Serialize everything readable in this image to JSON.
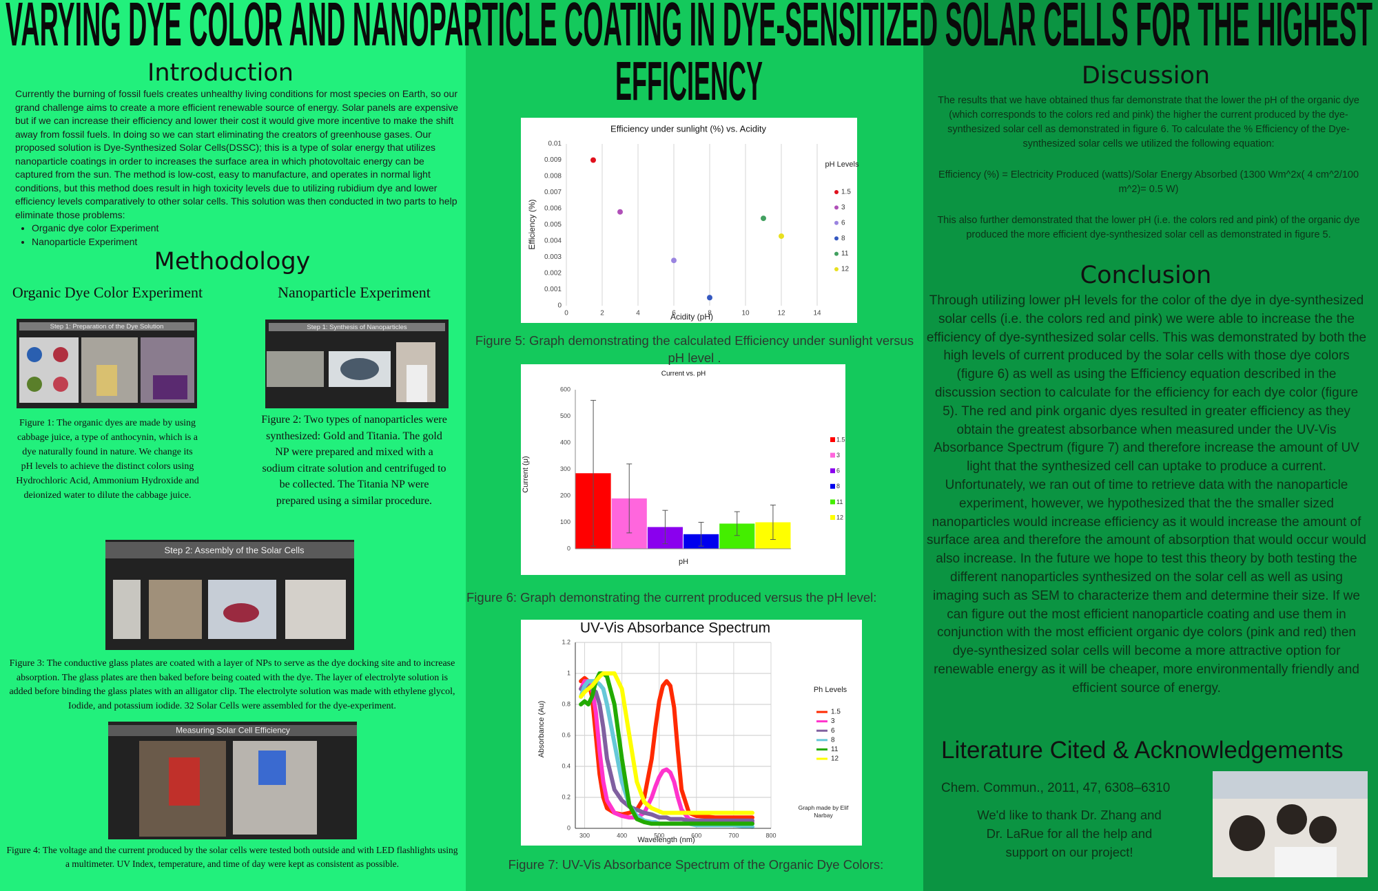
{
  "title": [
    "VARYING DYE COLOR AND NANOPARTICLE COATING IN DYE-SENSITIZED SOLAR CELLS FOR THE HIGHEST",
    "EFFICIENCY"
  ],
  "introduction": {
    "heading": "Introduction",
    "text": "Currently the burning of fossil fuels creates unhealthy living conditions for most species on Earth, so our grand challenge aims to create a more efficient renewable source of energy. Solar panels are expensive but if we can increase their efficiency  and lower their cost it would give more incentive to make the shift away from fossil fuels. In doing so we can start eliminating the creators of greenhouse gases. Our proposed solution is Dye-Synthesized Solar Cells(DSSC); this is a type of solar energy that utilizes nanoparticle coatings in order to increases the surface area in which photovoltaic energy can be captured from the sun. The method is low-cost, easy to manufacture, and operates in normal light conditions, but this method does result in high toxicity levels  due to utilizing rubidium dye and lower efficiency levels comparatively to other solar cells. This solution was then conducted in two parts to help eliminate those problems:",
    "bullets": [
      "Organic dye color Experiment",
      "Nanoparticle Experiment"
    ]
  },
  "methodology": {
    "heading": "Methodology",
    "dye_heading": "Organic Dye Color Experiment",
    "nano_heading": "Nanoparticle Experiment",
    "panels": [
      "Step 1: Preparation of the Dye Solution",
      "Step 1: Synthesis of Nanoparticles",
      "Step 2: Assembly of the Solar Cells",
      "Measuring Solar Cell Efficiency"
    ],
    "captions": [
      "Figure 1: The organic dyes are made by using cabbage juice, a type of anthocynin, which is a dye naturally found in nature. We change its pH levels to achieve the distinct colors using Hydrochloric Acid, Ammonium Hydroxide and deionized water to dilute the cabbage juice.",
      "Figure 2: Two types of nanoparticles were synthesized: Gold and Titania. The gold NP were prepared and mixed with a sodium citrate solution and centrifuged to be collected. The Titania NP were prepared using a similar procedure.",
      "Figure 3: The conductive glass plates are coated with a layer of NPs to serve as the dye docking site and to increase absorption. The glass plates are then baked before being coated with the dye. The layer of electrolyte solution is added before binding the glass plates with an alligator clip. The electrolyte solution was made with ethylene glycol, Iodide, and potassium iodide.  32 Solar Cells were assembled for the dye-experiment.",
      "Figure 4: The voltage and the current produced by the solar cells were tested both outside and with LED flashlights using a multimeter. UV Index, temperature, and time of day were kept as consistent as possible."
    ]
  },
  "chart_data": [
    {
      "type": "scatter",
      "title": "Efficiency under sunlight (%) vs. Acidity",
      "x_label": "Acidity (pH)",
      "y_label": "Efficiency (%)",
      "legend_title": "pH Levels",
      "xlim": [
        0,
        14
      ],
      "xticks": [
        0,
        2,
        4,
        6,
        8,
        10,
        12,
        14
      ],
      "ylim": [
        0,
        0.01
      ],
      "yticks": [
        0,
        0.001,
        0.002,
        0.003,
        0.004,
        0.005,
        0.006,
        0.007,
        0.008,
        0.009,
        0.01
      ],
      "grid": "x",
      "series": [
        {
          "name": "1.5",
          "color": "#e0101c",
          "x": [
            1.5
          ],
          "values": [
            0.009
          ]
        },
        {
          "name": "3",
          "color": "#b050b8",
          "x": [
            3
          ],
          "values": [
            0.0058
          ]
        },
        {
          "name": "6",
          "color": "#9a84e0",
          "x": [
            6
          ],
          "values": [
            0.0028
          ]
        },
        {
          "name": "8",
          "color": "#3558c0",
          "x": [
            8
          ],
          "values": [
            0.0005
          ]
        },
        {
          "name": "11",
          "color": "#42a060",
          "x": [
            11
          ],
          "values": [
            0.0054
          ]
        },
        {
          "name": "12",
          "color": "#e8e020",
          "x": [
            12
          ],
          "values": [
            0.0043
          ]
        }
      ],
      "caption": "Figure 5: Graph demonstrating the calculated Efficiency under sunlight versus pH level ."
    },
    {
      "type": "bar",
      "title": "Current vs. pH",
      "x_label": "pH",
      "y_label": "Current (μ)",
      "ylim": [
        0,
        600
      ],
      "yticks": [
        0,
        100,
        200,
        300,
        400,
        500,
        600
      ],
      "grid": false,
      "series": [
        {
          "name": "1.5",
          "color": "#ff0000",
          "values": [
            285
          ],
          "errors": [
            275
          ]
        },
        {
          "name": "3",
          "color": "#ff66dd",
          "values": [
            190
          ],
          "errors": [
            130
          ]
        },
        {
          "name": "6",
          "color": "#8a00ee",
          "values": [
            82
          ],
          "errors": [
            63
          ]
        },
        {
          "name": "8",
          "color": "#0000ee",
          "values": [
            55
          ],
          "errors": [
            45
          ]
        },
        {
          "name": "11",
          "color": "#44ee00",
          "values": [
            95
          ],
          "errors": [
            45
          ]
        },
        {
          "name": "12",
          "color": "#ffff00",
          "values": [
            100
          ],
          "errors": [
            65
          ]
        }
      ],
      "caption": "Figure 6: Graph demonstrating the current produced versus the pH level:"
    },
    {
      "type": "line",
      "title": "UV-Vis Absorbance Spectrum",
      "x_label": "Wavelength (nm)",
      "y_label": "Absorbance (Au)",
      "legend_title": "Ph Levels",
      "annotation": "Graph made by Elif Narbay",
      "xlim": [
        275,
        800
      ],
      "xticks": [
        300,
        400,
        500,
        600,
        700,
        800
      ],
      "ylim": [
        0,
        1.2
      ],
      "yticks": [
        0,
        0.2,
        0.4,
        0.6,
        0.8,
        1,
        1.2
      ],
      "grid": "both",
      "x": [
        290,
        300,
        310,
        320,
        330,
        340,
        350,
        360,
        380,
        400,
        420,
        440,
        460,
        480,
        490,
        500,
        510,
        520,
        530,
        540,
        550,
        560,
        580,
        600,
        650,
        700,
        750
      ],
      "series": [
        {
          "name": "1.5",
          "color": "#ff2a00",
          "values": [
            0.95,
            0.97,
            0.95,
            0.85,
            0.6,
            0.35,
            0.2,
            0.13,
            0.1,
            0.09,
            0.1,
            0.12,
            0.2,
            0.45,
            0.65,
            0.82,
            0.92,
            0.95,
            0.92,
            0.78,
            0.5,
            0.25,
            0.1,
            0.08,
            0.07,
            0.07,
            0.07
          ]
        },
        {
          "name": "3",
          "color": "#ff33cc",
          "values": [
            0.9,
            0.95,
            0.95,
            0.9,
            0.75,
            0.5,
            0.3,
            0.18,
            0.1,
            0.08,
            0.07,
            0.07,
            0.1,
            0.2,
            0.27,
            0.33,
            0.37,
            0.38,
            0.36,
            0.3,
            0.2,
            0.12,
            0.06,
            0.05,
            0.04,
            0.04,
            0.04
          ]
        },
        {
          "name": "6",
          "color": "#8060a0",
          "values": [
            0.9,
            0.92,
            0.92,
            0.9,
            0.88,
            0.8,
            0.65,
            0.45,
            0.25,
            0.18,
            0.14,
            0.12,
            0.1,
            0.09,
            0.08,
            0.07,
            0.07,
            0.07,
            0.06,
            0.06,
            0.06,
            0.06,
            0.05,
            0.05,
            0.05,
            0.05,
            0.05
          ]
        },
        {
          "name": "8",
          "color": "#66c8d8",
          "values": [
            0.85,
            0.92,
            0.95,
            0.95,
            0.95,
            0.93,
            0.9,
            0.8,
            0.55,
            0.3,
            0.15,
            0.08,
            0.05,
            0.04,
            0.04,
            0.03,
            0.03,
            0.03,
            0.03,
            0.03,
            0.03,
            0.03,
            0.03,
            0.02,
            0.02,
            0.02,
            0.01
          ]
        },
        {
          "name": "11",
          "color": "#22aa00",
          "values": [
            0.8,
            0.82,
            0.8,
            0.85,
            0.95,
            1.0,
            1.0,
            0.98,
            0.8,
            0.45,
            0.15,
            0.06,
            0.04,
            0.03,
            0.03,
            0.03,
            0.03,
            0.03,
            0.03,
            0.03,
            0.03,
            0.03,
            0.03,
            0.03,
            0.03,
            0.03,
            0.03
          ]
        },
        {
          "name": "12",
          "color": "#ffff00",
          "values": [
            0.85,
            0.88,
            0.9,
            0.92,
            0.95,
            0.98,
            1.0,
            1.0,
            1.0,
            0.9,
            0.6,
            0.3,
            0.17,
            0.13,
            0.12,
            0.11,
            0.1,
            0.1,
            0.1,
            0.1,
            0.1,
            0.1,
            0.1,
            0.1,
            0.1,
            0.1,
            0.1
          ]
        }
      ],
      "caption": "Figure 7: UV-Vis Absorbance Spectrum of the Organic Dye Colors:"
    }
  ],
  "discussion": {
    "heading": "Discussion",
    "paragraphs": [
      "The results that we have obtained thus far demonstrate that the lower the pH of the organic dye (which corresponds to the colors red and pink) the higher the current produced by the dye-synthesized solar cell as demonstrated in figure 6. To calculate the % Efficiency of the Dye-synthesized solar cells we utilized the following equation:",
      "Efficiency (%) = Electricity Produced (watts)/Solar Energy Absorbed (1300 Wm^2x( 4 cm^2/100 m^2)= 0.5 W)",
      "This also further demonstrated that the lower pH (i.e. the colors red and pink) of the organic dye produced the more efficient dye-synthesized solar cell as demonstrated in figure 5."
    ]
  },
  "conclusion": {
    "heading": "Conclusion",
    "text": "Through utilizing lower pH levels for the color of the dye in dye-synthesized solar cells (i.e. the colors red and pink) we were able to increase the  the efficiency of dye-synthesized solar cells. This was demonstrated by both the high levels of current produced by the solar cells with those dye colors (figure 6) as well as using the Efficiency equation described in the discussion section to calculate for the efficiency for each dye color (figure 5). The red and pink organic dyes resulted in greater efficiency as they obtain the greatest absorbance when measured under the UV-Vis Absorbance Spectrum (figure 7) and therefore increase the amount of UV light that the synthesized cell can uptake to produce a current. Unfortunately, we ran out of time to retrieve data with the nanoparticle experiment, however, we hypothesized that the the smaller sized nanoparticles would increase efficiency as it would increase the amount of surface area and therefore the amount of absorption that would occur would also increase. In the future we hope to test this theory by both testing the different nanoparticles synthesized on the solar cell as well as using imaging such as SEM to characterize them and determine their size. If we can figure out the most efficient nanoparticle coating and use them in conjunction with the most efficient organic dye colors (pink and red) then dye-synthesized solar cells will become a more attractive option for renewable energy as it will be cheaper, more environmentally friendly and efficient source of energy."
  },
  "literature": {
    "heading": "Literature Cited & Acknowledgements",
    "citation": "Chem. Commun., 2011, 47, 6308–6310",
    "acknowledgement": "We'd like to thank Dr. Zhang and Dr. LaRue for all the help and support on our project!"
  }
}
